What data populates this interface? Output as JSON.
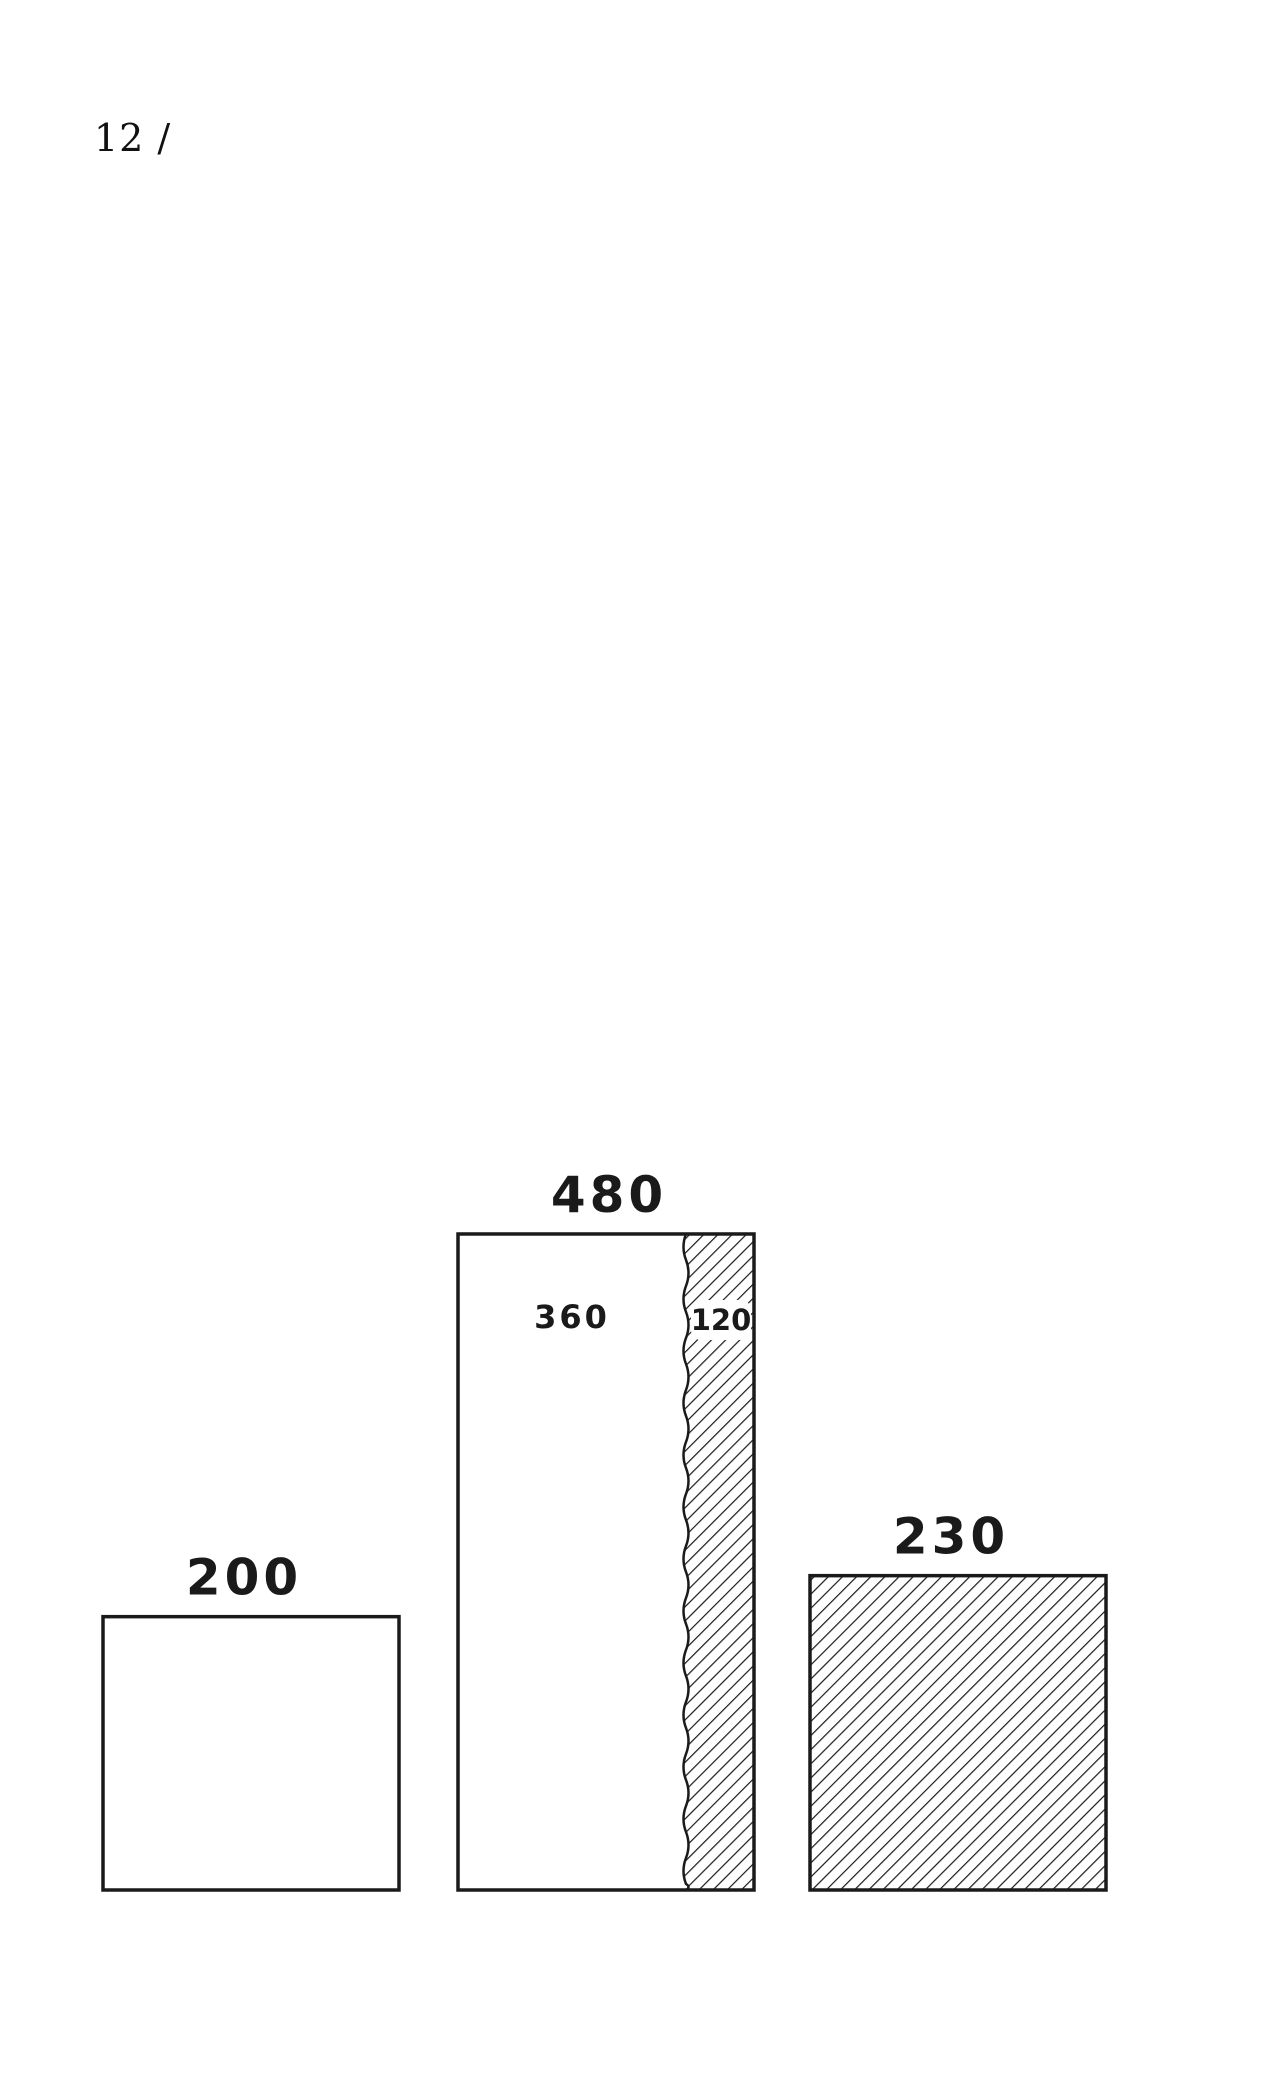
{
  "page": {
    "number_text": "12 /"
  },
  "chart_data": {
    "type": "bar",
    "stacked": true,
    "title": "",
    "xlabel": "",
    "ylabel": "",
    "axes_visible": false,
    "grid": false,
    "legend": "none",
    "ylim": [
      0,
      480
    ],
    "categories": [
      "",
      "",
      ""
    ],
    "totals": [
      200,
      480,
      230
    ],
    "total_labels": [
      "200",
      "480",
      "230"
    ],
    "series": [
      {
        "pattern": "plain",
        "values": [
          200,
          360,
          0
        ],
        "labels": [
          "",
          "360",
          ""
        ]
      },
      {
        "pattern": "hatched",
        "values": [
          0,
          120,
          230
        ],
        "labels": [
          "",
          "120",
          ""
        ]
      }
    ],
    "colors": {
      "outline": "#1a1a1a",
      "plain_fill": "#ffffff",
      "hatch": "#1a1a1a"
    }
  }
}
